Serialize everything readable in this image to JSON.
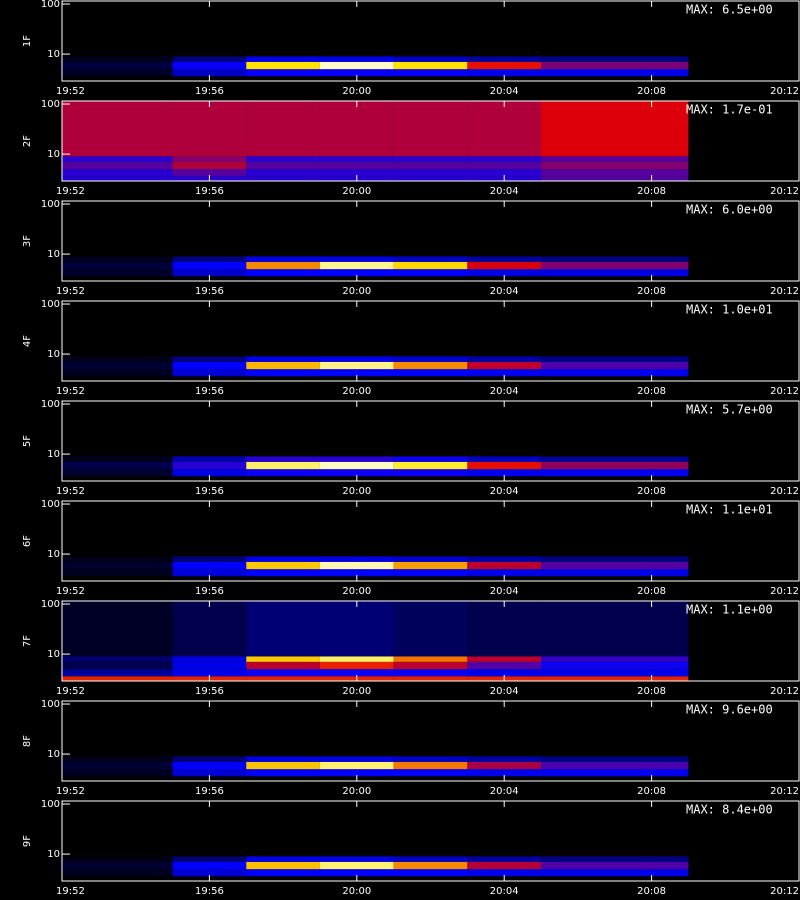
{
  "chart_data": [
    {
      "type": "heatmap",
      "ylabel": "1F",
      "max_label": "MAX: 6.5e+00",
      "zlim": [
        0,
        6.5
      ],
      "log_y": true,
      "xlim": [
        1192,
        1212
      ],
      "xticks": [
        {
          "value": 1192,
          "label": "19:52"
        },
        {
          "value": 1196,
          "label": "19:56"
        },
        {
          "value": 1200,
          "label": "20:00"
        },
        {
          "value": 1204,
          "label": "20:04"
        },
        {
          "value": 1208,
          "label": "20:08"
        },
        {
          "value": 1212,
          "label": "20:12"
        }
      ],
      "ylim": [
        2.9,
        115
      ],
      "yticks": [
        10,
        100
      ],
      "x_bins": [
        1192,
        1195,
        1197,
        1199,
        1201,
        1203,
        1205,
        1209
      ],
      "y_bins": [
        2.9,
        3.6,
        5,
        7,
        9,
        115
      ],
      "z": [
        [
          0,
          0,
          0,
          0,
          0,
          0,
          0
        ],
        [
          0.3,
          1.5,
          2,
          2,
          2,
          1.8,
          1.8
        ],
        [
          0.5,
          2,
          5.5,
          6.3,
          5.5,
          4,
          3
        ],
        [
          0.2,
          1,
          1.8,
          1.8,
          1.5,
          1.2,
          1
        ],
        [
          0,
          0,
          0,
          0,
          0,
          0,
          0
        ]
      ]
    },
    {
      "type": "heatmap",
      "ylabel": "2F",
      "max_label": "MAX: 1.7e-01",
      "zlim": [
        0,
        0.17
      ],
      "log_y": true,
      "xlim": [
        1192,
        1212
      ],
      "xticks": [
        {
          "value": 1192,
          "label": "19:52"
        },
        {
          "value": 1196,
          "label": "19:56"
        },
        {
          "value": 1200,
          "label": "20:00"
        },
        {
          "value": 1204,
          "label": "20:04"
        },
        {
          "value": 1208,
          "label": "20:08"
        },
        {
          "value": 1212,
          "label": "20:12"
        }
      ],
      "ylim": [
        2.9,
        115
      ],
      "yticks": [
        10,
        100
      ],
      "x_bins": [
        1192,
        1195,
        1197,
        1199,
        1201,
        1203,
        1205,
        1209
      ],
      "y_bins": [
        2.9,
        3.6,
        5,
        7,
        9,
        115
      ],
      "z": [
        [
          0.06,
          0.06,
          0.06,
          0.06,
          0.06,
          0.06,
          0.07
        ],
        [
          0.06,
          0.07,
          0.06,
          0.06,
          0.06,
          0.06,
          0.07
        ],
        [
          0.07,
          0.09,
          0.07,
          0.07,
          0.07,
          0.07,
          0.08
        ],
        [
          0.06,
          0.08,
          0.06,
          0.06,
          0.06,
          0.06,
          0.07
        ],
        [
          0.09,
          0.09,
          0.09,
          0.09,
          0.09,
          0.09,
          0.1
        ]
      ]
    },
    {
      "type": "heatmap",
      "ylabel": "3F",
      "max_label": "MAX: 6.0e+00",
      "zlim": [
        0,
        6
      ],
      "log_y": true,
      "xlim": [
        1192,
        1212
      ],
      "xticks": [
        {
          "value": 1192,
          "label": "19:52"
        },
        {
          "value": 1196,
          "label": "19:56"
        },
        {
          "value": 1200,
          "label": "20:00"
        },
        {
          "value": 1204,
          "label": "20:04"
        },
        {
          "value": 1208,
          "label": "20:08"
        },
        {
          "value": 1212,
          "label": "20:12"
        }
      ],
      "ylim": [
        2.9,
        115
      ],
      "yticks": [
        10,
        100
      ],
      "x_bins": [
        1192,
        1195,
        1197,
        1199,
        1201,
        1203,
        1205,
        1209
      ],
      "y_bins": [
        2.9,
        3.6,
        5,
        7,
        9,
        115
      ],
      "z": [
        [
          0,
          0,
          0,
          0,
          0,
          0,
          0
        ],
        [
          0.3,
          1.4,
          1.8,
          1.8,
          1.8,
          1.6,
          1.6
        ],
        [
          0.4,
          1.8,
          4.5,
          5.6,
          5,
          3.5,
          2.8
        ],
        [
          0.2,
          0.9,
          1.6,
          1.6,
          1.4,
          1.1,
          0.9
        ],
        [
          0,
          0,
          0,
          0,
          0,
          0,
          0
        ]
      ]
    },
    {
      "type": "heatmap",
      "ylabel": "4F",
      "max_label": "MAX: 1.0e+01",
      "zlim": [
        0,
        10
      ],
      "log_y": true,
      "xlim": [
        1192,
        1212
      ],
      "xticks": [
        {
          "value": 1192,
          "label": "19:52"
        },
        {
          "value": 1196,
          "label": "19:56"
        },
        {
          "value": 1200,
          "label": "20:00"
        },
        {
          "value": 1204,
          "label": "20:04"
        },
        {
          "value": 1208,
          "label": "20:08"
        },
        {
          "value": 1212,
          "label": "20:12"
        }
      ],
      "ylim": [
        2.9,
        115
      ],
      "yticks": [
        10,
        100
      ],
      "x_bins": [
        1192,
        1195,
        1197,
        1199,
        1201,
        1203,
        1205,
        1209
      ],
      "y_bins": [
        2.9,
        3.6,
        5,
        7,
        9,
        115
      ],
      "z": [
        [
          0,
          0,
          0,
          0,
          0,
          0,
          0
        ],
        [
          0.4,
          2.5,
          3,
          3,
          3,
          2.8,
          2.8
        ],
        [
          0.6,
          3,
          8,
          9.3,
          7.5,
          5.5,
          4
        ],
        [
          0.3,
          1.5,
          2.8,
          2.8,
          2.5,
          2,
          1.6
        ],
        [
          0,
          0,
          0,
          0,
          0,
          0,
          0
        ]
      ]
    },
    {
      "type": "heatmap",
      "ylabel": "5F",
      "max_label": "MAX: 5.7e+00",
      "zlim": [
        0,
        5.7
      ],
      "log_y": true,
      "xlim": [
        1192,
        1212
      ],
      "xticks": [
        {
          "value": 1192,
          "label": "19:52"
        },
        {
          "value": 1196,
          "label": "19:56"
        },
        {
          "value": 1200,
          "label": "20:00"
        },
        {
          "value": 1204,
          "label": "20:04"
        },
        {
          "value": 1208,
          "label": "20:08"
        },
        {
          "value": 1212,
          "label": "20:12"
        }
      ],
      "ylim": [
        2.9,
        115
      ],
      "yticks": [
        10,
        100
      ],
      "x_bins": [
        1192,
        1195,
        1197,
        1199,
        1201,
        1203,
        1205,
        1209
      ],
      "y_bins": [
        2.9,
        3.6,
        5,
        7,
        9,
        115
      ],
      "z": [
        [
          0,
          0,
          0,
          0,
          0,
          0,
          0
        ],
        [
          0.3,
          1.5,
          1.8,
          1.8,
          1.8,
          1.6,
          1.6
        ],
        [
          0.5,
          2,
          5.2,
          5.5,
          5,
          3.5,
          2.8
        ],
        [
          0.2,
          1.2,
          2,
          2,
          1.8,
          1.3,
          1
        ],
        [
          0,
          0,
          0,
          0,
          0,
          0,
          0
        ]
      ]
    },
    {
      "type": "heatmap",
      "ylabel": "6F",
      "max_label": "MAX: 1.1e+01",
      "zlim": [
        0,
        11
      ],
      "log_y": true,
      "xlim": [
        1192,
        1212
      ],
      "xticks": [
        {
          "value": 1192,
          "label": "19:52"
        },
        {
          "value": 1196,
          "label": "19:56"
        },
        {
          "value": 1200,
          "label": "20:00"
        },
        {
          "value": 1204,
          "label": "20:04"
        },
        {
          "value": 1208,
          "label": "20:08"
        },
        {
          "value": 1212,
          "label": "20:12"
        }
      ],
      "ylim": [
        2.9,
        115
      ],
      "yticks": [
        10,
        100
      ],
      "x_bins": [
        1192,
        1195,
        1197,
        1199,
        1201,
        1203,
        1205,
        1209
      ],
      "y_bins": [
        2.9,
        3.6,
        5,
        7,
        9,
        115
      ],
      "z": [
        [
          0,
          0,
          0,
          0,
          0,
          0,
          0
        ],
        [
          0.4,
          2.8,
          3.3,
          3.3,
          3.3,
          3,
          3
        ],
        [
          0.6,
          3.3,
          9,
          10.5,
          8.5,
          6,
          4.5
        ],
        [
          0.3,
          1.6,
          3,
          3,
          2.7,
          2.2,
          1.7
        ],
        [
          0,
          0,
          0,
          0,
          0,
          0,
          0
        ]
      ]
    },
    {
      "type": "heatmap",
      "ylabel": "7F",
      "max_label": "MAX: 1.1e+00",
      "zlim": [
        0,
        1.1
      ],
      "log_y": true,
      "xlim": [
        1192,
        1212
      ],
      "xticks": [
        {
          "value": 1192,
          "label": "19:52"
        },
        {
          "value": 1196,
          "label": "19:56"
        },
        {
          "value": 1200,
          "label": "20:00"
        },
        {
          "value": 1204,
          "label": "20:04"
        },
        {
          "value": 1208,
          "label": "20:08"
        },
        {
          "value": 1212,
          "label": "20:12"
        }
      ],
      "ylim": [
        2.9,
        115
      ],
      "yticks": [
        10,
        100
      ],
      "x_bins": [
        1192,
        1195,
        1197,
        1199,
        1201,
        1203,
        1205,
        1209
      ],
      "y_bins": [
        2.9,
        3.6,
        5,
        7,
        9,
        115
      ],
      "z": [
        [
          0.7,
          0.7,
          0.7,
          0.7,
          0.7,
          0.7,
          0.7
        ],
        [
          0.2,
          0.3,
          0.35,
          0.35,
          0.35,
          0.3,
          0.3
        ],
        [
          0.1,
          0.3,
          0.6,
          0.7,
          0.6,
          0.45,
          0.35
        ],
        [
          0.15,
          0.3,
          0.9,
          1,
          0.8,
          0.6,
          0.4
        ],
        [
          0.05,
          0.1,
          0.15,
          0.15,
          0.12,
          0.1,
          0.1
        ]
      ]
    },
    {
      "type": "heatmap",
      "ylabel": "8F",
      "max_label": "MAX: 9.6e+00",
      "zlim": [
        0,
        9.6
      ],
      "log_y": true,
      "xlim": [
        1192,
        1212
      ],
      "xticks": [
        {
          "value": 1192,
          "label": "19:52"
        },
        {
          "value": 1196,
          "label": "19:56"
        },
        {
          "value": 1200,
          "label": "20:00"
        },
        {
          "value": 1204,
          "label": "20:04"
        },
        {
          "value": 1208,
          "label": "20:08"
        },
        {
          "value": 1212,
          "label": "20:12"
        }
      ],
      "ylim": [
        2.9,
        115
      ],
      "yticks": [
        10,
        100
      ],
      "x_bins": [
        1192,
        1195,
        1197,
        1199,
        1201,
        1203,
        1205,
        1209
      ],
      "y_bins": [
        2.9,
        3.6,
        5,
        7,
        9,
        115
      ],
      "z": [
        [
          0,
          0,
          0,
          0,
          0,
          0,
          0
        ],
        [
          0.4,
          2.4,
          2.9,
          2.9,
          2.9,
          2.7,
          2.7
        ],
        [
          0.6,
          2.9,
          7.8,
          8.8,
          7,
          5,
          3.8
        ],
        [
          0.3,
          1.4,
          2.6,
          2.6,
          2.3,
          1.9,
          1.5
        ],
        [
          0,
          0,
          0,
          0,
          0,
          0,
          0
        ]
      ]
    },
    {
      "type": "heatmap",
      "ylabel": "9F",
      "max_label": "MAX: 8.4e+00",
      "zlim": [
        0,
        8.4
      ],
      "log_y": true,
      "xlim": [
        1192,
        1212
      ],
      "xticks": [
        {
          "value": 1192,
          "label": "19:52"
        },
        {
          "value": 1196,
          "label": "19:56"
        },
        {
          "value": 1200,
          "label": "20:00"
        },
        {
          "value": 1204,
          "label": "20:04"
        },
        {
          "value": 1208,
          "label": "20:08"
        },
        {
          "value": 1212,
          "label": "20:12"
        }
      ],
      "ylim": [
        2.9,
        115
      ],
      "yticks": [
        10,
        100
      ],
      "x_bins": [
        1192,
        1195,
        1197,
        1199,
        1201,
        1203,
        1205,
        1209
      ],
      "y_bins": [
        2.9,
        3.6,
        5,
        7,
        9,
        115
      ],
      "z": [
        [
          0,
          0,
          0,
          0,
          0,
          0,
          0
        ],
        [
          0.3,
          2.1,
          2.5,
          2.5,
          2.5,
          2.3,
          2.3
        ],
        [
          0.5,
          2.5,
          6.8,
          7.7,
          6.3,
          4.5,
          3.4
        ],
        [
          0.2,
          1.2,
          2.3,
          2.3,
          2,
          1.6,
          1.3
        ],
        [
          0,
          0,
          0,
          0,
          0,
          0,
          0
        ]
      ]
    }
  ]
}
